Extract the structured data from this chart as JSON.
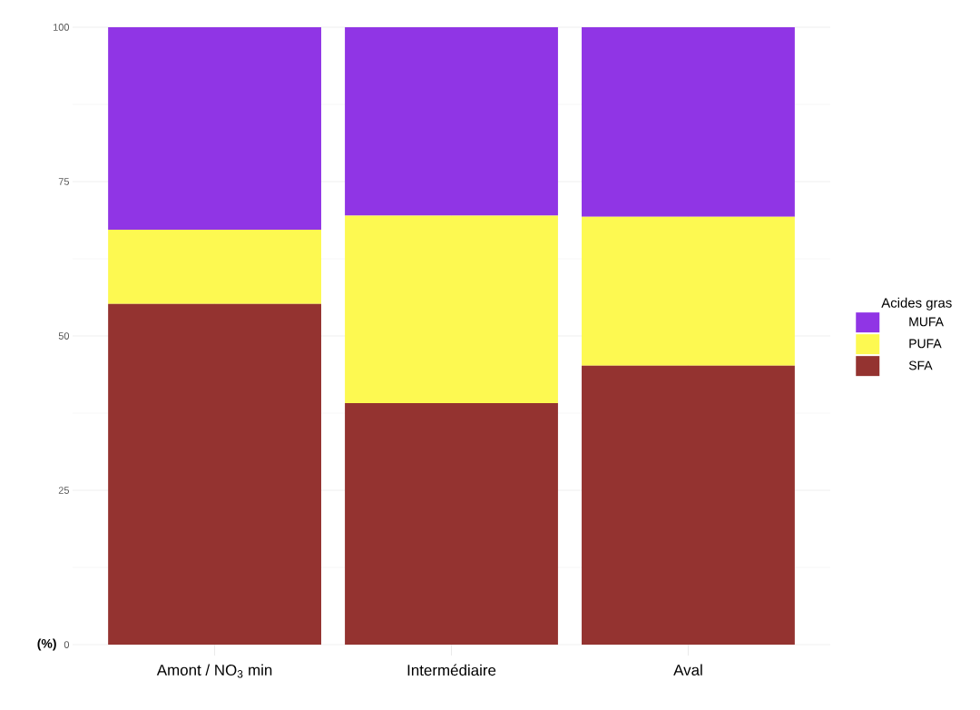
{
  "chart_data": {
    "type": "bar",
    "stacked": true,
    "ylabel": "**(%)**",
    "legend_title": "Acides gras",
    "categories": [
      "Amont / NO$_{3}$ min",
      "Intermédiaire",
      "Aval"
    ],
    "series": [
      {
        "name": "SFA",
        "color": "#943330",
        "values": [
          55.2,
          39.1,
          45.2
        ]
      },
      {
        "name": "PUFA",
        "color": "#fdf951",
        "values": [
          12.0,
          30.4,
          24.1
        ]
      },
      {
        "name": "MUFA",
        "color": "#9035e5",
        "values": [
          32.8,
          30.5,
          30.7
        ]
      }
    ],
    "ylim": [
      0,
      100
    ],
    "yticks": [
      0,
      25,
      50,
      75,
      100
    ],
    "grid": true,
    "legend": "right"
  }
}
